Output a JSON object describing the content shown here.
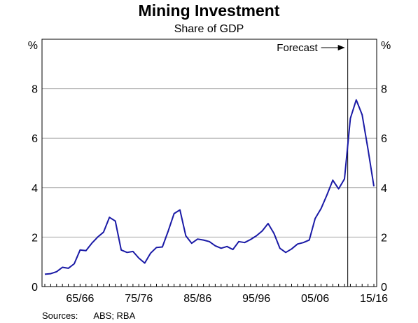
{
  "chart_data": {
    "type": "line",
    "title": "Mining Investment",
    "subtitle": "Share of GDP",
    "ylabel_left": "%",
    "ylabel_right": "%",
    "ylim": [
      0,
      10
    ],
    "yticks": [
      0,
      2,
      4,
      6,
      8
    ],
    "xlim": [
      0,
      51
    ],
    "xticks": [
      {
        "x": 6,
        "label": "65/66"
      },
      {
        "x": 16,
        "label": "75/76"
      },
      {
        "x": 26,
        "label": "85/86"
      },
      {
        "x": 36,
        "label": "95/96"
      },
      {
        "x": 46,
        "label": "05/06"
      },
      {
        "x": 56,
        "label": "15/16"
      }
    ],
    "grid": true,
    "forecast_start": 51,
    "forecast_label": "Forecast",
    "series": [
      {
        "name": "",
        "color": "#1a1aa6",
        "values": [
          0.5,
          0.52,
          0.6,
          0.78,
          0.74,
          0.92,
          1.48,
          1.45,
          1.75,
          2.0,
          2.2,
          2.8,
          2.65,
          1.48,
          1.38,
          1.42,
          1.15,
          0.95,
          1.35,
          1.58,
          1.6,
          2.25,
          2.95,
          3.1,
          2.05,
          1.75,
          1.92,
          1.88,
          1.82,
          1.65,
          1.55,
          1.62,
          1.5,
          1.82,
          1.78,
          1.9,
          2.05,
          2.25,
          2.55,
          2.15,
          1.55,
          1.38,
          1.52,
          1.72,
          1.78,
          1.88,
          2.75,
          3.15,
          3.7,
          4.3,
          3.95,
          4.35,
          6.8,
          7.55,
          6.95,
          5.55,
          4.05
        ]
      }
    ]
  },
  "sources": {
    "label": "Sources:",
    "value": "ABS; RBA"
  }
}
